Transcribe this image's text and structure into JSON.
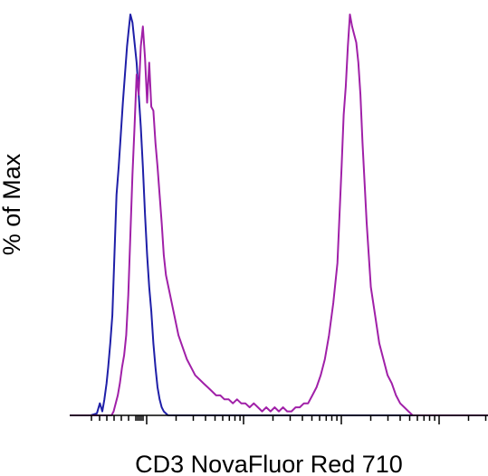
{
  "chart_data": {
    "type": "line",
    "title": "",
    "xlabel": "CD3 NovaFluor Red 710",
    "ylabel": "% of Max",
    "xlim": [
      0,
      100
    ],
    "ylim": [
      0,
      100
    ],
    "x_scale": "log",
    "grid": false,
    "legend": "none",
    "x_tick_labels": [],
    "series": [
      {
        "color": "#1f1fa8",
        "points": [
          [
            0,
            0
          ],
          [
            5,
            0
          ],
          [
            6.5,
            0.5
          ],
          [
            7.2,
            3
          ],
          [
            7.8,
            1
          ],
          [
            8.3,
            4
          ],
          [
            8.8,
            8
          ],
          [
            9.2,
            12
          ],
          [
            9.7,
            18
          ],
          [
            10.2,
            25
          ],
          [
            10.7,
            40
          ],
          [
            11.2,
            55
          ],
          [
            11.7,
            62
          ],
          [
            12.2,
            70
          ],
          [
            12.7,
            78
          ],
          [
            13.2,
            85
          ],
          [
            13.7,
            92
          ],
          [
            14.1,
            96
          ],
          [
            14.5,
            100
          ],
          [
            15,
            98
          ],
          [
            15.5,
            93
          ],
          [
            16,
            88
          ],
          [
            16.5,
            80
          ],
          [
            17,
            72
          ],
          [
            17.5,
            62
          ],
          [
            18,
            50
          ],
          [
            18.5,
            40
          ],
          [
            19,
            32
          ],
          [
            19.5,
            26
          ],
          [
            20,
            18
          ],
          [
            20.5,
            12
          ],
          [
            21,
            7
          ],
          [
            21.5,
            4
          ],
          [
            22,
            2
          ],
          [
            22.5,
            1
          ],
          [
            23.5,
            0
          ],
          [
            100,
            0
          ]
        ]
      },
      {
        "color": "#a020a8",
        "points": [
          [
            0,
            0
          ],
          [
            10,
            0
          ],
          [
            10.5,
            1
          ],
          [
            11,
            3
          ],
          [
            11.5,
            5
          ],
          [
            12,
            8
          ],
          [
            12.5,
            12
          ],
          [
            13,
            15
          ],
          [
            13.5,
            20
          ],
          [
            14,
            30
          ],
          [
            14.5,
            45
          ],
          [
            15,
            60
          ],
          [
            15.5,
            72
          ],
          [
            16,
            85
          ],
          [
            16.5,
            80
          ],
          [
            17,
            92
          ],
          [
            17.5,
            97
          ],
          [
            18,
            89
          ],
          [
            18.5,
            78
          ],
          [
            19,
            88
          ],
          [
            19.5,
            77
          ],
          [
            20,
            76
          ],
          [
            20.5,
            68
          ],
          [
            21,
            62
          ],
          [
            21.5,
            55
          ],
          [
            22,
            48
          ],
          [
            22.5,
            40
          ],
          [
            23,
            35
          ],
          [
            24,
            30
          ],
          [
            25,
            25
          ],
          [
            26,
            20
          ],
          [
            27,
            17
          ],
          [
            28,
            14
          ],
          [
            29,
            12
          ],
          [
            30,
            10
          ],
          [
            31,
            9
          ],
          [
            32,
            8
          ],
          [
            33,
            7
          ],
          [
            34,
            6
          ],
          [
            35,
            5
          ],
          [
            36,
            5
          ],
          [
            37,
            4
          ],
          [
            38,
            4
          ],
          [
            39,
            3
          ],
          [
            40,
            4
          ],
          [
            41,
            3
          ],
          [
            42,
            3
          ],
          [
            43,
            2
          ],
          [
            44,
            3
          ],
          [
            45,
            2
          ],
          [
            46,
            1
          ],
          [
            47,
            2
          ],
          [
            48,
            1
          ],
          [
            49,
            2
          ],
          [
            50,
            1
          ],
          [
            51,
            2
          ],
          [
            52,
            1
          ],
          [
            53,
            1
          ],
          [
            54,
            2
          ],
          [
            55,
            2
          ],
          [
            56,
            3
          ],
          [
            57,
            3
          ],
          [
            58,
            5
          ],
          [
            59,
            7
          ],
          [
            60,
            10
          ],
          [
            61,
            14
          ],
          [
            62,
            20
          ],
          [
            63,
            28
          ],
          [
            64,
            38
          ],
          [
            64.5,
            50
          ],
          [
            65,
            62
          ],
          [
            65.5,
            75
          ],
          [
            66,
            82
          ],
          [
            66.5,
            92
          ],
          [
            67,
            100
          ],
          [
            67.5,
            97
          ],
          [
            68,
            95
          ],
          [
            68.5,
            93
          ],
          [
            69,
            88
          ],
          [
            69.5,
            80
          ],
          [
            70,
            68
          ],
          [
            70.5,
            58
          ],
          [
            71,
            48
          ],
          [
            71.5,
            40
          ],
          [
            72,
            32
          ],
          [
            73,
            25
          ],
          [
            74,
            18
          ],
          [
            75,
            14
          ],
          [
            76,
            10
          ],
          [
            77,
            8
          ],
          [
            78,
            5
          ],
          [
            79,
            3
          ],
          [
            80,
            2
          ],
          [
            81,
            1
          ],
          [
            82,
            0
          ],
          [
            100,
            0
          ]
        ]
      }
    ]
  }
}
